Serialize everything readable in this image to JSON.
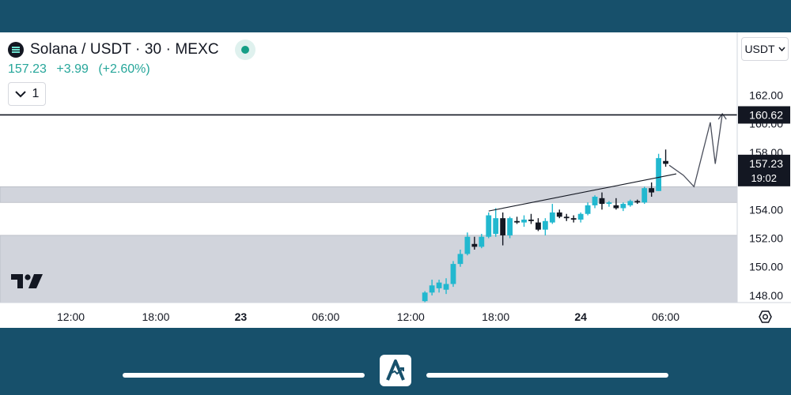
{
  "symbol": {
    "title": "Solana / USDT · 30 · MEXC",
    "last": "157.23",
    "change": "+3.99",
    "change_pct": "(+2.60%)",
    "live_icon": "live-status-dot-icon",
    "logo_icon": "solana-logo-icon"
  },
  "toolbar": {
    "collapse_label": "1",
    "collapse_icon": "chevron-down-icon",
    "currency_label": "USDT",
    "currency_icon": "chevron-down-icon",
    "settings_icon": "gear-hexagon-icon",
    "brand_icon": "tradingview-logo-icon",
    "app_icon": "app-a-logo-icon"
  },
  "colors": {
    "up": "#22b8cf",
    "down": "#131722",
    "zone": "#d1d4dc",
    "price_text": "#26a69a",
    "frame": "#17506b"
  },
  "chart_data": {
    "type": "candlestick",
    "title": "Solana / USDT · 30 · MEXC",
    "x_ticks": [
      {
        "label": "12:00",
        "t": -24,
        "bold": false
      },
      {
        "label": "18:00",
        "t": -12,
        "bold": false
      },
      {
        "label": "23",
        "t": 0,
        "bold": true
      },
      {
        "label": "06:00",
        "t": 12,
        "bold": false
      },
      {
        "label": "12:00",
        "t": 24,
        "bold": false
      },
      {
        "label": "18:00",
        "t": 36,
        "bold": false
      },
      {
        "label": "24",
        "t": 48,
        "bold": true
      },
      {
        "label": "06:00",
        "t": 60,
        "bold": false
      }
    ],
    "y_ticks": [
      148,
      150,
      152,
      154,
      156,
      158,
      160,
      162
    ],
    "ylim": [
      147.5,
      162.8
    ],
    "zones": [
      {
        "from": 154.5,
        "to": 155.6
      },
      {
        "from": 146.0,
        "to": 152.2
      }
    ],
    "horizontal_line": 160.62,
    "labels": [
      {
        "value": "160.62",
        "price": 160.62
      },
      {
        "value": "157.23",
        "sub": "19:02",
        "price": 157.23
      }
    ],
    "candles": [
      {
        "t": 26,
        "o": 147.6,
        "h": 148.3,
        "l": 147.5,
        "c": 148.2
      },
      {
        "t": 27,
        "o": 148.2,
        "h": 149.1,
        "l": 148.0,
        "c": 148.7
      },
      {
        "t": 28,
        "o": 148.5,
        "h": 149.1,
        "l": 148.2,
        "c": 148.9
      },
      {
        "t": 29,
        "o": 148.4,
        "h": 149.2,
        "l": 148.1,
        "c": 148.8
      },
      {
        "t": 30,
        "o": 148.8,
        "h": 150.4,
        "l": 148.6,
        "c": 150.2
      },
      {
        "t": 31,
        "o": 150.2,
        "h": 151.2,
        "l": 150.0,
        "c": 150.9
      },
      {
        "t": 32,
        "o": 150.9,
        "h": 152.4,
        "l": 150.8,
        "c": 152.1
      },
      {
        "t": 33,
        "o": 151.6,
        "h": 152.1,
        "l": 151.2,
        "c": 151.4
      },
      {
        "t": 34,
        "o": 151.4,
        "h": 152.3,
        "l": 151.3,
        "c": 152.1
      },
      {
        "t": 35,
        "o": 152.1,
        "h": 153.8,
        "l": 152.0,
        "c": 153.6
      },
      {
        "t": 36,
        "o": 152.3,
        "h": 154.1,
        "l": 152.1,
        "c": 153.4
      },
      {
        "t": 37,
        "o": 153.4,
        "h": 153.8,
        "l": 151.5,
        "c": 152.2
      },
      {
        "t": 38,
        "o": 152.2,
        "h": 153.5,
        "l": 152.0,
        "c": 153.4
      },
      {
        "t": 39,
        "o": 153.2,
        "h": 153.5,
        "l": 153.0,
        "c": 153.1
      },
      {
        "t": 40,
        "o": 153.1,
        "h": 153.6,
        "l": 152.8,
        "c": 153.3
      },
      {
        "t": 41,
        "o": 153.3,
        "h": 153.7,
        "l": 153.0,
        "c": 153.2
      },
      {
        "t": 42,
        "o": 153.1,
        "h": 153.4,
        "l": 152.5,
        "c": 152.6
      },
      {
        "t": 43,
        "o": 152.6,
        "h": 153.4,
        "l": 152.2,
        "c": 153.2
      },
      {
        "t": 44,
        "o": 153.1,
        "h": 154.4,
        "l": 153.0,
        "c": 153.8
      },
      {
        "t": 45,
        "o": 153.8,
        "h": 154.0,
        "l": 153.4,
        "c": 153.5
      },
      {
        "t": 46,
        "o": 153.5,
        "h": 153.7,
        "l": 153.2,
        "c": 153.4
      },
      {
        "t": 47,
        "o": 153.4,
        "h": 153.6,
        "l": 153.1,
        "c": 153.3
      },
      {
        "t": 48,
        "o": 153.3,
        "h": 153.8,
        "l": 153.1,
        "c": 153.7
      },
      {
        "t": 49,
        "o": 153.7,
        "h": 154.5,
        "l": 153.6,
        "c": 154.3
      },
      {
        "t": 50,
        "o": 154.3,
        "h": 155.0,
        "l": 154.1,
        "c": 154.9
      },
      {
        "t": 51,
        "o": 154.8,
        "h": 155.2,
        "l": 154.0,
        "c": 154.4
      },
      {
        "t": 52,
        "o": 154.4,
        "h": 154.6,
        "l": 154.2,
        "c": 154.5
      },
      {
        "t": 53,
        "o": 154.3,
        "h": 154.8,
        "l": 154.0,
        "c": 154.1
      },
      {
        "t": 54,
        "o": 154.1,
        "h": 154.5,
        "l": 153.9,
        "c": 154.4
      },
      {
        "t": 55,
        "o": 154.3,
        "h": 154.7,
        "l": 154.2,
        "c": 154.6
      },
      {
        "t": 56,
        "o": 154.6,
        "h": 154.7,
        "l": 154.4,
        "c": 154.5
      },
      {
        "t": 57,
        "o": 154.5,
        "h": 155.6,
        "l": 154.4,
        "c": 155.5
      },
      {
        "t": 58,
        "o": 155.5,
        "h": 155.9,
        "l": 154.9,
        "c": 155.2
      },
      {
        "t": 59,
        "o": 155.3,
        "h": 157.9,
        "l": 155.3,
        "c": 157.6
      },
      {
        "t": 60,
        "o": 157.4,
        "h": 158.2,
        "l": 157.0,
        "c": 157.2
      }
    ],
    "trendline": [
      {
        "t": 35.0,
        "p": 153.9
      },
      {
        "t": 61.5,
        "p": 156.5
      }
    ],
    "projection": [
      {
        "t": 60.5,
        "p": 157.1
      },
      {
        "t": 62.5,
        "p": 156.4
      },
      {
        "t": 64.0,
        "p": 155.6
      },
      {
        "t": 66.3,
        "p": 160.1
      },
      {
        "t": 67.0,
        "p": 157.2
      },
      {
        "t": 68.0,
        "p": 160.7
      }
    ]
  }
}
